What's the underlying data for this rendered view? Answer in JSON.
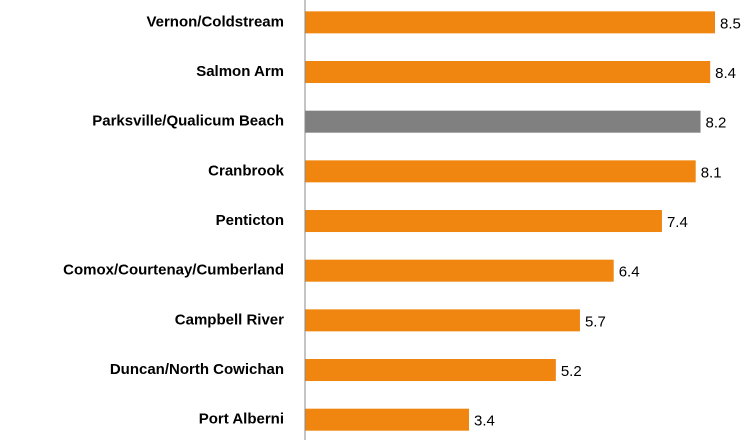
{
  "chart_data": {
    "type": "barh",
    "categories": [
      "Vernon/Coldstream",
      "Salmon Arm",
      "Parksville/Qualicum Beach",
      "Cranbrook",
      "Penticton",
      "Comox/Courtenay/Cumberland",
      "Campbell River",
      "Duncan/North Cowichan",
      "Port Alberni"
    ],
    "values": [
      8.5,
      8.4,
      8.2,
      8.1,
      7.4,
      6.4,
      5.7,
      5.2,
      3.4
    ],
    "colors": [
      "#f0850f",
      "#f0850f",
      "#808080",
      "#f0850f",
      "#f0850f",
      "#f0850f",
      "#f0850f",
      "#f0850f",
      "#f0850f"
    ]
  }
}
